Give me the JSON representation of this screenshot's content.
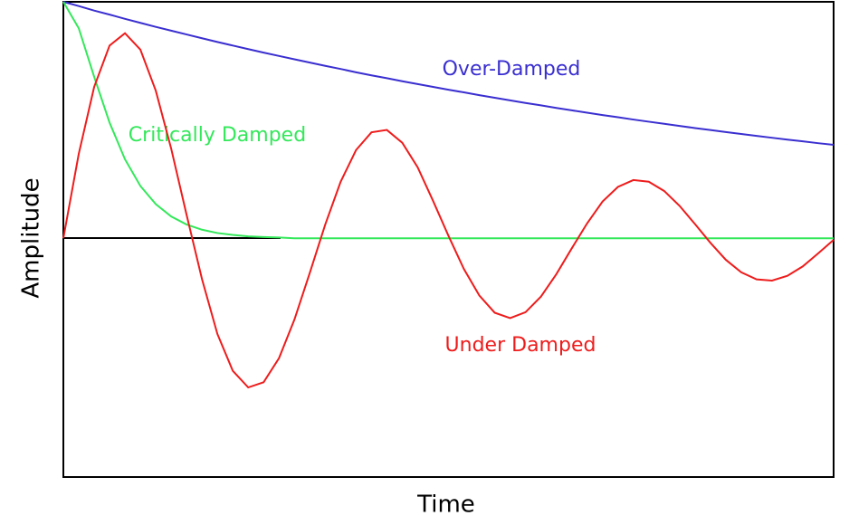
{
  "chart_data": {
    "type": "line",
    "xlabel": "Time",
    "ylabel": "Amplitude",
    "xlim": [
      0,
      100
    ],
    "ylim": [
      -1.01,
      1
    ],
    "x": [
      0,
      2,
      4,
      6,
      8,
      10,
      12,
      14,
      16,
      18,
      20,
      22,
      24,
      26,
      28,
      30,
      32,
      34,
      36,
      38,
      40,
      42,
      44,
      46,
      48,
      50,
      52,
      54,
      56,
      58,
      60,
      62,
      64,
      66,
      68,
      70,
      72,
      74,
      76,
      78,
      80,
      82,
      84,
      86,
      88,
      90,
      92,
      94,
      96,
      98,
      100
    ],
    "series": [
      {
        "name": "Over-Damped",
        "color": "#3a2fd0",
        "values": [
          1,
          0.982,
          0.963,
          0.946,
          0.928,
          0.911,
          0.894,
          0.878,
          0.862,
          0.846,
          0.83,
          0.815,
          0.8,
          0.785,
          0.771,
          0.757,
          0.743,
          0.729,
          0.716,
          0.702,
          0.689,
          0.677,
          0.664,
          0.652,
          0.64,
          0.628,
          0.617,
          0.605,
          0.594,
          0.583,
          0.572,
          0.562,
          0.551,
          0.541,
          0.531,
          0.521,
          0.512,
          0.502,
          0.493,
          0.484,
          0.475,
          0.466,
          0.458,
          0.449,
          0.441,
          0.433,
          0.425,
          0.417,
          0.41,
          0.402,
          0.395
        ]
      },
      {
        "name": "Critically Damped",
        "color": "#33e85a",
        "values": [
          1,
          0.888,
          0.683,
          0.489,
          0.334,
          0.221,
          0.144,
          0.092,
          0.058,
          0.036,
          0.022,
          0.014,
          0.008,
          0.005,
          0.003,
          0,
          0,
          0,
          0,
          0,
          0,
          0,
          0,
          0,
          0,
          0,
          0,
          0,
          0,
          0,
          0,
          0,
          0,
          0,
          0,
          0,
          0,
          0,
          0,
          0,
          0,
          0,
          0,
          0,
          0,
          0,
          0,
          0,
          0,
          0,
          0
        ]
      },
      {
        "name": "Under Damped",
        "color": "#ee1c1c",
        "values": [
          0,
          0.357,
          0.64,
          0.815,
          0.867,
          0.798,
          0.624,
          0.379,
          0.099,
          -0.173,
          -0.405,
          -0.561,
          -0.631,
          -0.609,
          -0.507,
          -0.344,
          -0.146,
          0.058,
          0.239,
          0.373,
          0.448,
          0.458,
          0.404,
          0.3,
          0.158,
          0.01,
          -0.13,
          -0.242,
          -0.315,
          -0.338,
          -0.313,
          -0.247,
          -0.152,
          -0.043,
          0.063,
          0.155,
          0.217,
          0.246,
          0.239,
          0.2,
          0.137,
          0.06,
          -0.019,
          -0.091,
          -0.144,
          -0.174,
          -0.179,
          -0.159,
          -0.119,
          -0.064,
          -0.007
        ]
      }
    ]
  }
}
